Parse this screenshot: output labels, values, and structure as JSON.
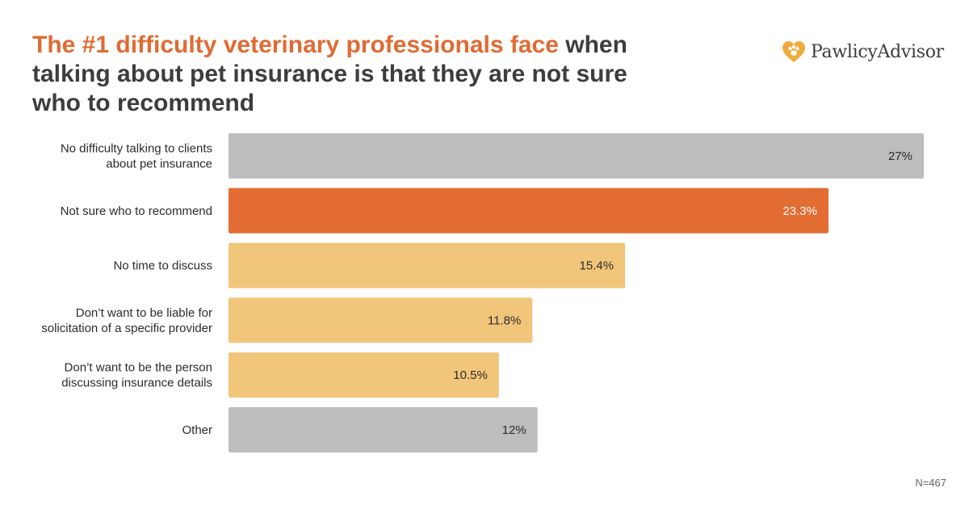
{
  "title": {
    "highlight": "The #1 difficulty veterinary professionals face",
    "rest": " when talking about pet insurance is that they are not sure who to recommend"
  },
  "logo": {
    "name": "PawlicyAdvisor",
    "icon": "heart-paw-icon"
  },
  "footnote": "N=467",
  "colors": {
    "grey": "#bdbdbd",
    "highlight": "#e36c33",
    "light": "#f1c57a",
    "title_highlight": "#e06b33",
    "text_dark": "#2b2b2b"
  },
  "chart_data": {
    "type": "bar",
    "orientation": "horizontal",
    "title": "The #1 difficulty veterinary professionals face when talking about pet insurance is that they are not sure who to recommend",
    "xlabel": "",
    "ylabel": "",
    "xlim": [
      0,
      27
    ],
    "grid": false,
    "categories": [
      [
        "No difficulty talking to clients",
        "about pet insurance"
      ],
      [
        "Not sure who to recommend"
      ],
      [
        "No time to discuss"
      ],
      [
        "Don’t want to be liable for",
        "solicitation of a specific provider"
      ],
      [
        "Don’t want to be the person",
        "discussing insurance details"
      ],
      [
        "Other"
      ]
    ],
    "values": [
      27,
      23.3,
      15.4,
      11.8,
      10.5,
      12
    ],
    "value_labels": [
      "27%",
      "23.3%",
      "15.4%",
      "11.8%",
      "10.5%",
      "12%"
    ],
    "bar_colors": [
      "grey",
      "highlight",
      "light",
      "light",
      "light",
      "grey"
    ],
    "label_colors": [
      "#2b2b2b",
      "#ffffff",
      "#2b2b2b",
      "#2b2b2b",
      "#2b2b2b",
      "#2b2b2b"
    ]
  }
}
